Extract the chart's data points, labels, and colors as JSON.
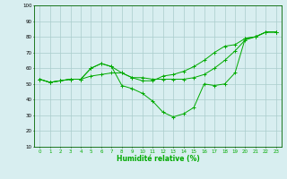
{
  "title": "",
  "xlabel": "Humidité relative (%)",
  "ylabel": "",
  "bg_color": "#d8eef0",
  "grid_color": "#aacccc",
  "line_color": "#00aa00",
  "xlim": [
    -0.5,
    23.5
  ],
  "ylim": [
    10,
    100
  ],
  "yticks": [
    10,
    20,
    30,
    40,
    50,
    60,
    70,
    80,
    90,
    100
  ],
  "xticks": [
    0,
    1,
    2,
    3,
    4,
    5,
    6,
    7,
    8,
    9,
    10,
    11,
    12,
    13,
    14,
    15,
    16,
    17,
    18,
    19,
    20,
    21,
    22,
    23
  ],
  "series": [
    [
      53,
      51,
      52,
      53,
      53,
      60,
      63,
      61,
      57,
      54,
      52,
      52,
      55,
      56,
      58,
      61,
      65,
      70,
      74,
      75,
      79,
      80,
      83,
      83
    ],
    [
      53,
      51,
      52,
      53,
      53,
      60,
      63,
      61,
      49,
      47,
      44,
      39,
      32,
      29,
      31,
      35,
      50,
      49,
      50,
      57,
      79,
      80,
      83,
      83
    ],
    [
      53,
      51,
      52,
      53,
      53,
      55,
      56,
      57,
      57,
      54,
      54,
      53,
      53,
      53,
      53,
      54,
      56,
      60,
      65,
      71,
      78,
      80,
      83,
      83
    ]
  ]
}
